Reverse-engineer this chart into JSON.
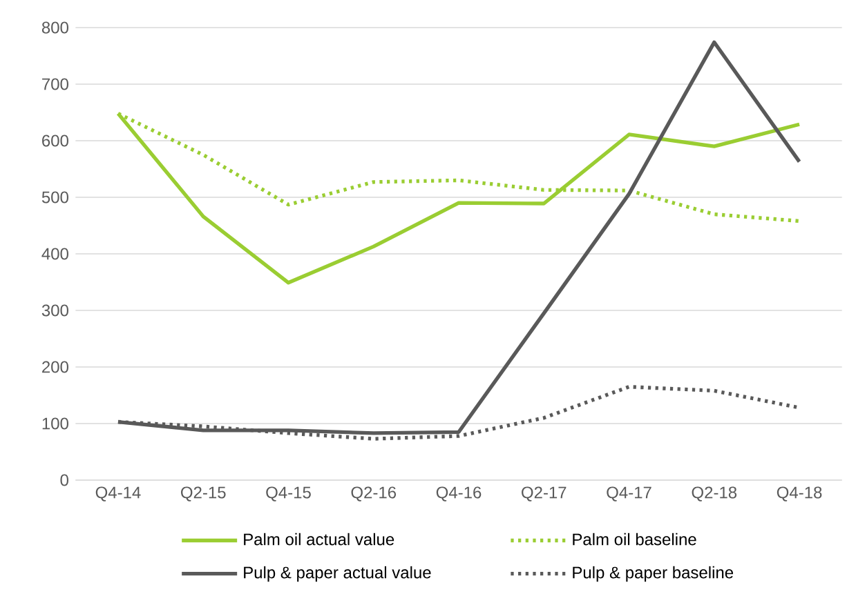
{
  "chart_data": {
    "type": "line",
    "categories": [
      "Q4-14",
      "Q2-15",
      "Q4-15",
      "Q2-16",
      "Q4-16",
      "Q2-17",
      "Q4-17",
      "Q2-18",
      "Q4-18"
    ],
    "series": [
      {
        "name": "Palm oil actual value",
        "color": "#9acd32",
        "line_style": "solid",
        "values": [
          648,
          466,
          349,
          413,
          490,
          489,
          611,
          590,
          629
        ]
      },
      {
        "name": "Palm oil baseline",
        "color": "#9acd32",
        "line_style": "dotted",
        "values": [
          648,
          575,
          487,
          527,
          530,
          513,
          512,
          470,
          458
        ]
      },
      {
        "name": "Pulp & paper actual value",
        "color": "#595959",
        "line_style": "solid",
        "values": [
          103,
          88,
          88,
          83,
          85,
          295,
          506,
          774,
          563
        ]
      },
      {
        "name": "Pulp & paper baseline",
        "color": "#595959",
        "line_style": "dotted",
        "values": [
          103,
          95,
          83,
          73,
          78,
          110,
          165,
          158,
          128
        ]
      }
    ],
    "ylim": [
      0,
      800
    ],
    "yticks": [
      0,
      100,
      200,
      300,
      400,
      500,
      600,
      700,
      800
    ],
    "grid": "y",
    "legend": "bottom",
    "marker": "none"
  }
}
